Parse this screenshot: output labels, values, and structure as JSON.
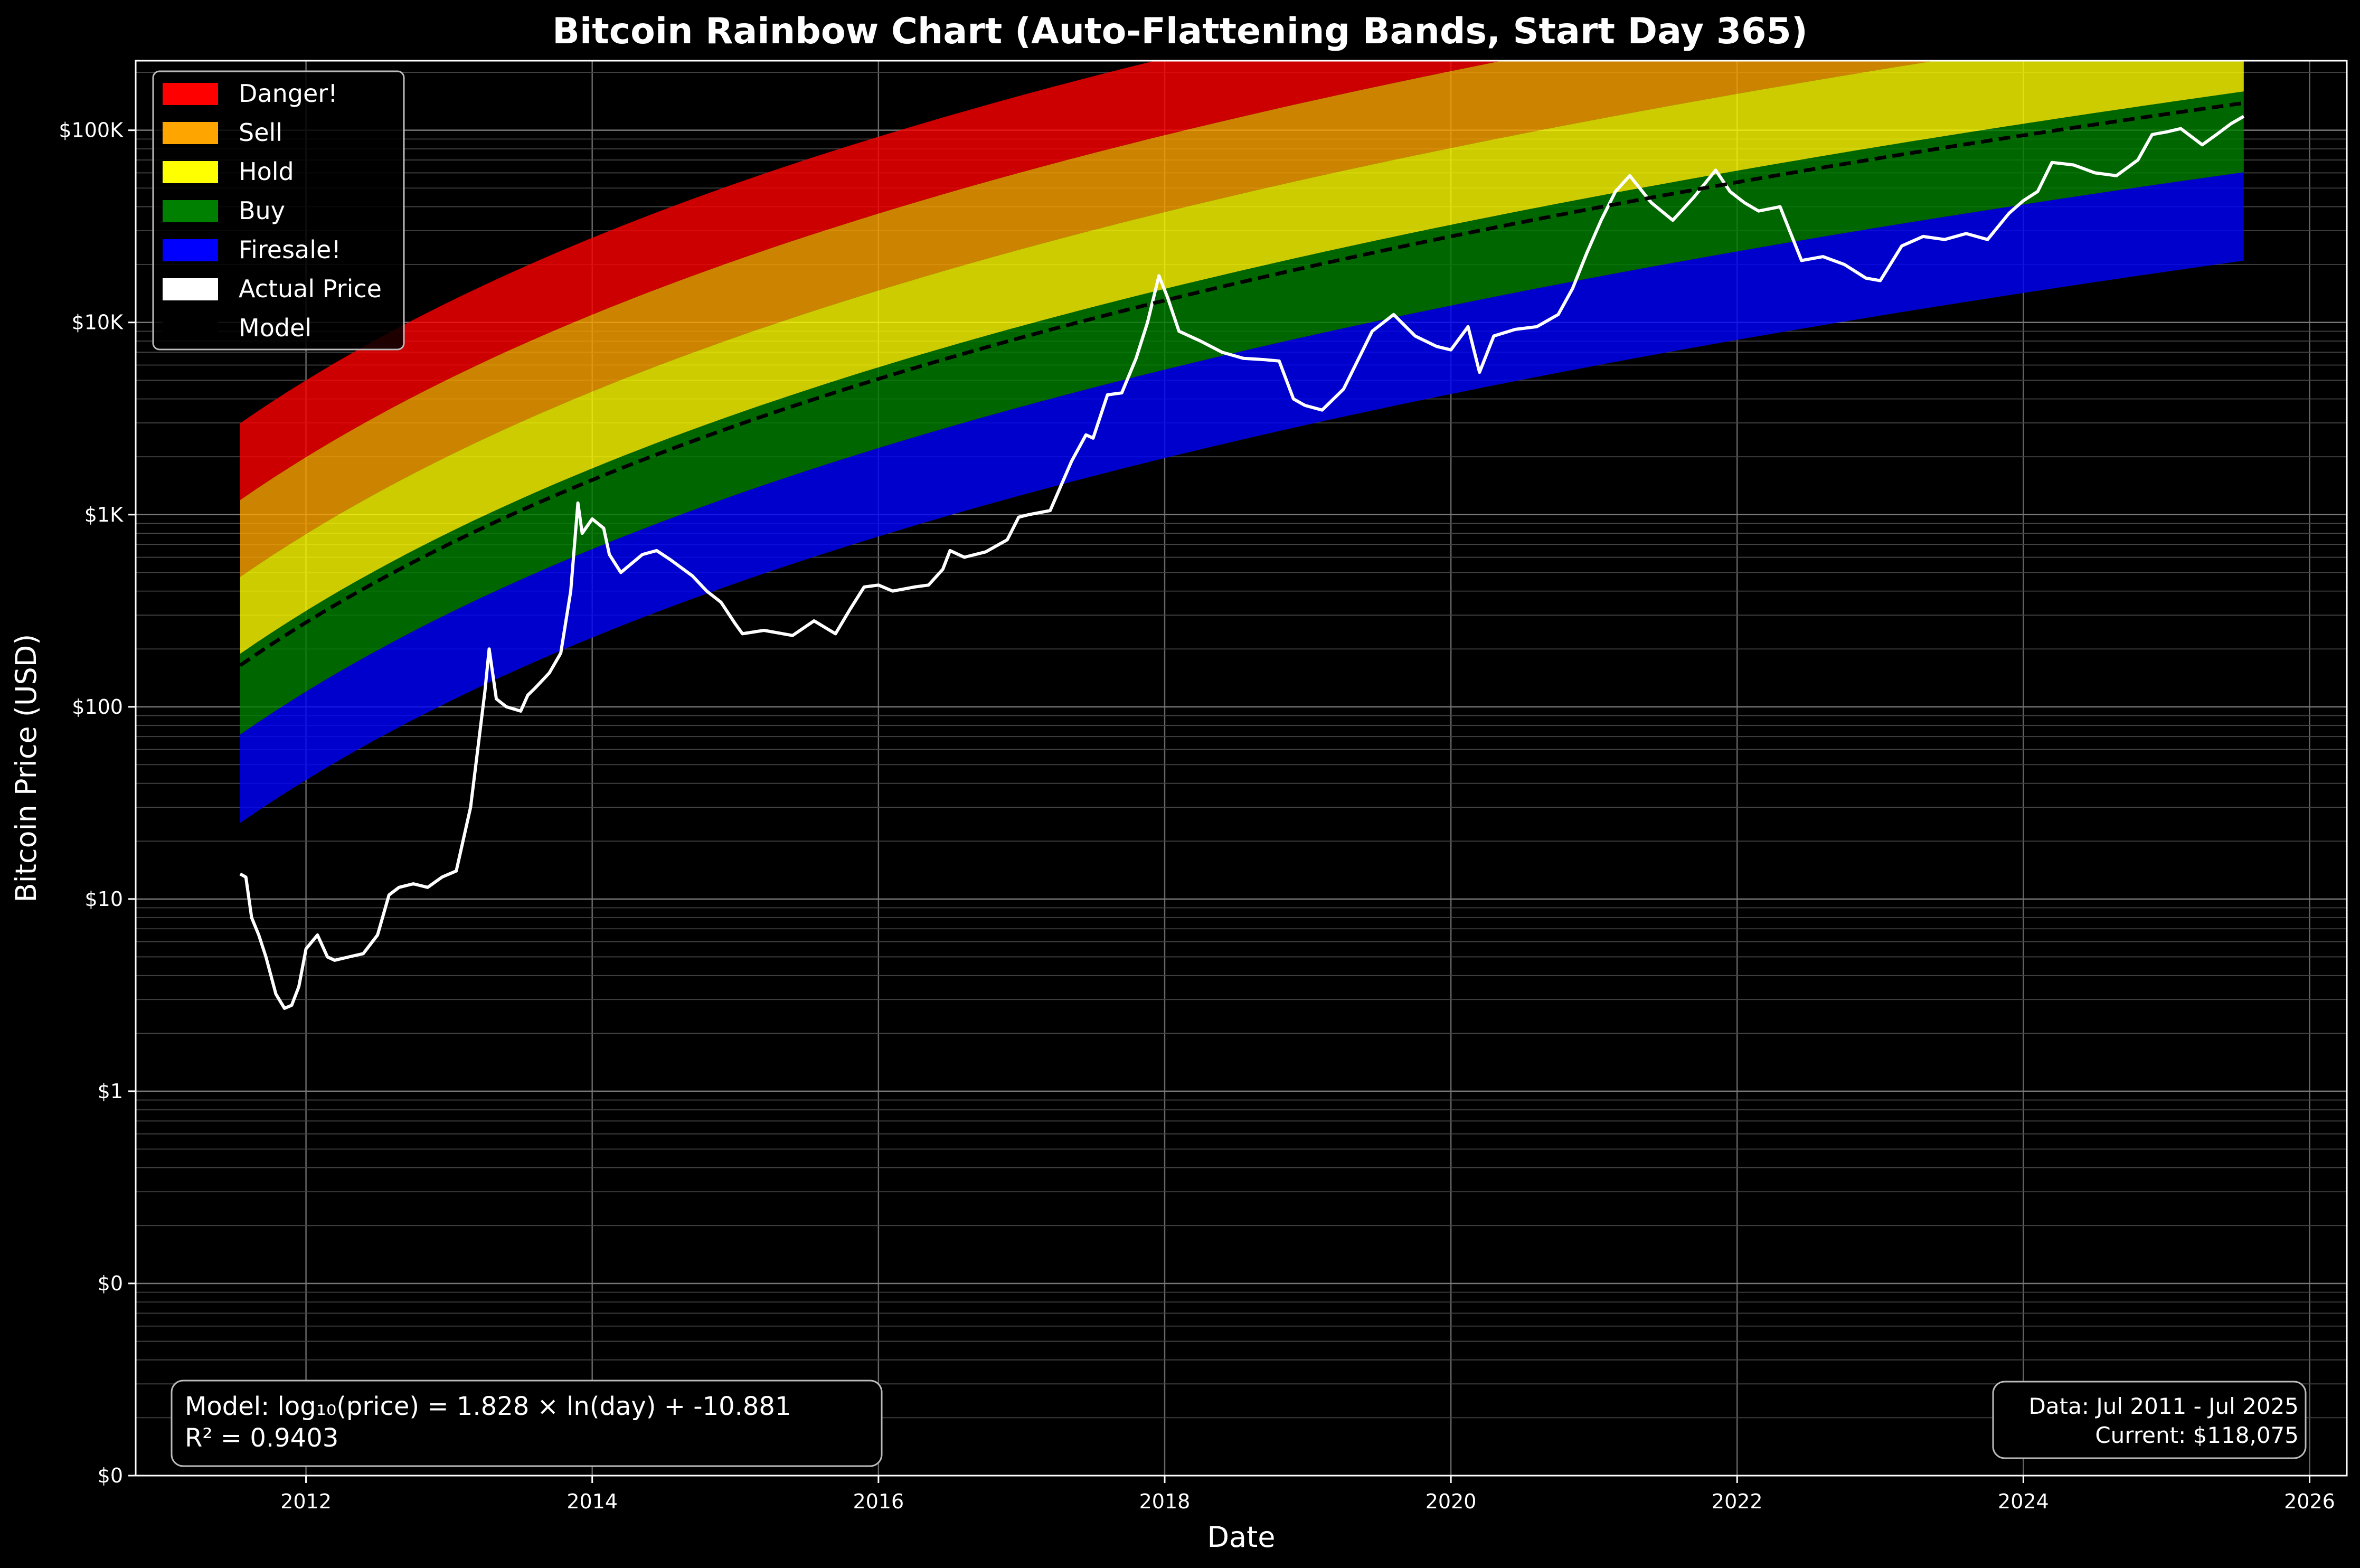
{
  "chart_data": {
    "type": "area",
    "title": "Bitcoin Rainbow Chart (Auto-Flattening Bands, Start Day 365)",
    "xlabel": "Date",
    "ylabel": "Bitcoin Price (USD)",
    "y_scale": "log",
    "grid": true,
    "legend_position": "top-left",
    "x_ticks": [
      "2012",
      "2014",
      "2016",
      "2018",
      "2020",
      "2022",
      "2024",
      "2026"
    ],
    "x_tick_years": [
      2012,
      2014,
      2016,
      2018,
      2020,
      2022,
      2024,
      2026
    ],
    "xlim": [
      2010.81,
      2026.26
    ],
    "y_ticks": [
      {
        "label": "$0",
        "value": 0.01
      },
      {
        "label": "$0",
        "value": 0.1
      },
      {
        "label": "$1",
        "value": 1
      },
      {
        "label": "$10",
        "value": 10
      },
      {
        "label": "$100",
        "value": 100
      },
      {
        "label": "$1K",
        "value": 1000
      },
      {
        "label": "$10K",
        "value": 10000
      },
      {
        "label": "$100K",
        "value": 100000
      }
    ],
    "ylim": [
      0.01,
      230000
    ],
    "model": {
      "slope": 1.828,
      "intercept": -10.881,
      "offset_days": 365,
      "start_year": 2011.54,
      "end_year": 2025.54
    },
    "band_offsets_log10": [
      0.32,
      0.4,
      0.5,
      0.58,
      0.66
    ],
    "band_offset_flatten": 0.0,
    "bands": [
      {
        "name": "Danger!",
        "color": "#ff0000"
      },
      {
        "name": "Sell",
        "color": "#ffa500"
      },
      {
        "name": "Hold",
        "color": "#ffff00"
      },
      {
        "name": "Buy",
        "color": "#008000"
      },
      {
        "name": "Firesale!",
        "color": "#0000ff"
      }
    ],
    "series": [
      {
        "name": "Actual Price",
        "color": "#ffffff",
        "x": [
          2011.54,
          2011.58,
          2011.62,
          2011.67,
          2011.72,
          2011.79,
          2011.85,
          2011.9,
          2011.95,
          2012.0,
          2012.08,
          2012.15,
          2012.2,
          2012.3,
          2012.4,
          2012.5,
          2012.58,
          2012.65,
          2012.75,
          2012.85,
          2012.95,
          2013.05,
          2013.15,
          2013.25,
          2013.28,
          2013.33,
          2013.4,
          2013.5,
          2013.55,
          2013.6,
          2013.7,
          2013.78,
          2013.85,
          2013.9,
          2013.93,
          2014.0,
          2014.08,
          2014.12,
          2014.2,
          2014.35,
          2014.45,
          2014.55,
          2014.7,
          2014.8,
          2014.9,
          2015.0,
          2015.05,
          2015.2,
          2015.4,
          2015.55,
          2015.7,
          2015.8,
          2015.9,
          2016.0,
          2016.1,
          2016.25,
          2016.35,
          2016.45,
          2016.5,
          2016.6,
          2016.75,
          2016.9,
          2016.98,
          2017.05,
          2017.2,
          2017.35,
          2017.45,
          2017.5,
          2017.6,
          2017.7,
          2017.8,
          2017.88,
          2017.96,
          2018.02,
          2018.1,
          2018.25,
          2018.4,
          2018.55,
          2018.7,
          2018.8,
          2018.9,
          2018.98,
          2019.1,
          2019.25,
          2019.45,
          2019.6,
          2019.75,
          2019.9,
          2020.0,
          2020.12,
          2020.2,
          2020.3,
          2020.45,
          2020.6,
          2020.75,
          2020.85,
          2020.95,
          2021.05,
          2021.15,
          2021.25,
          2021.4,
          2021.55,
          2021.7,
          2021.85,
          2021.95,
          2022.05,
          2022.15,
          2022.3,
          2022.45,
          2022.6,
          2022.75,
          2022.9,
          2023.0,
          2023.15,
          2023.3,
          2023.45,
          2023.6,
          2023.75,
          2023.9,
          2024.0,
          2024.1,
          2024.2,
          2024.35,
          2024.5,
          2024.65,
          2024.8,
          2024.9,
          2025.0,
          2025.1,
          2025.25,
          2025.35,
          2025.45,
          2025.54
        ],
        "y": [
          13.5,
          13.0,
          8.0,
          6.5,
          5.0,
          3.2,
          2.7,
          2.8,
          3.5,
          5.5,
          6.5,
          5.0,
          4.8,
          5.0,
          5.2,
          6.5,
          10.5,
          11.5,
          12.0,
          11.5,
          13.0,
          14.0,
          30.0,
          120.0,
          200.0,
          110.0,
          100.0,
          95.0,
          115.0,
          125.0,
          150.0,
          190.0,
          400.0,
          1150.0,
          800.0,
          950.0,
          850.0,
          620.0,
          500.0,
          620.0,
          650.0,
          580.0,
          480.0,
          400.0,
          350.0,
          270.0,
          240.0,
          250.0,
          235.0,
          280.0,
          240.0,
          320.0,
          420.0,
          430.0,
          400.0,
          420.0,
          430.0,
          520.0,
          650.0,
          600.0,
          640.0,
          740.0,
          970.0,
          1000.0,
          1050.0,
          1900.0,
          2600.0,
          2500.0,
          4200.0,
          4300.0,
          6500.0,
          10000.0,
          17500.0,
          13500.0,
          9000.0,
          8000.0,
          7000.0,
          6500.0,
          6400.0,
          6300.0,
          4000.0,
          3700.0,
          3500.0,
          4500.0,
          9000.0,
          11000.0,
          8500.0,
          7500.0,
          7200.0,
          9500.0,
          5500.0,
          8500.0,
          9200.0,
          9500.0,
          11000.0,
          15000.0,
          23000.0,
          34000.0,
          48000.0,
          58000.0,
          42000.0,
          34000.0,
          45000.0,
          62000.0,
          48000.0,
          42000.0,
          38000.0,
          40000.0,
          21000.0,
          22000.0,
          20000.0,
          17000.0,
          16500.0,
          25000.0,
          28000.0,
          27000.0,
          29000.0,
          27000.0,
          37000.0,
          43000.0,
          48000.0,
          68000.0,
          66000.0,
          60000.0,
          58000.0,
          70000.0,
          95000.0,
          98000.0,
          102000.0,
          84000.0,
          95000.0,
          108000.0,
          118075.0
        ]
      },
      {
        "name": "Model",
        "color": "#000000",
        "dashed": true
      }
    ],
    "annotations": {
      "model_text": "Model: log₁₀(price) = 1.828 × ln(day) + -10.881",
      "r2_text": "R² = 0.9403",
      "data_range_text": "Data: Jul 2011 - Jul 2025",
      "current_text": "Current: $118,075"
    }
  }
}
